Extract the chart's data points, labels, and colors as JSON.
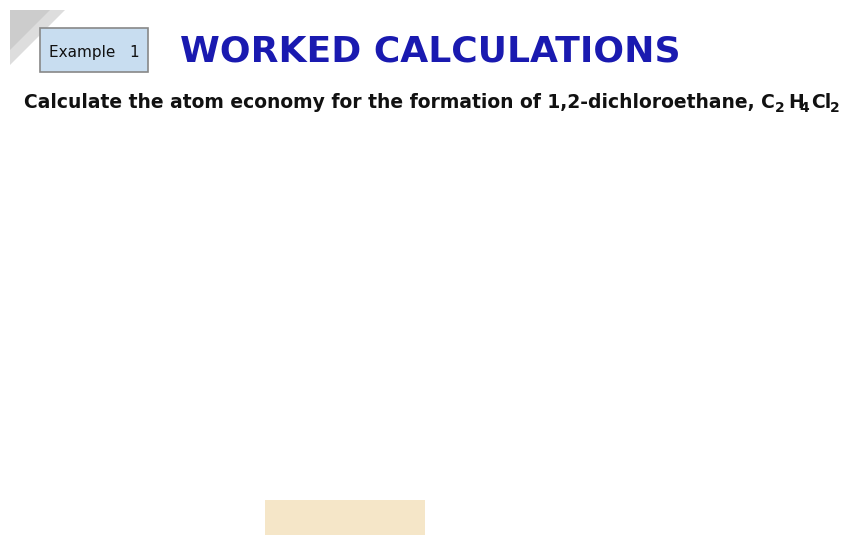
{
  "title": "WORKED CALCULATIONS",
  "title_color": "#1a1ab0",
  "title_fontsize": 26,
  "title_fontweight": "bold",
  "example_label": "Example   1",
  "example_box_facecolor": "#c8ddf0",
  "example_box_edgecolor": "#888888",
  "example_fontsize": 11,
  "subtitle_text": "Calculate the atom economy for the formation of 1,2-dichloroethane, C",
  "subtitle_fontsize": 13.5,
  "subtitle_color": "#111111",
  "background_color": "#ffffff",
  "tan_box_color": "#f5e6c8",
  "logo_triangle_color": "#e8e8e8"
}
